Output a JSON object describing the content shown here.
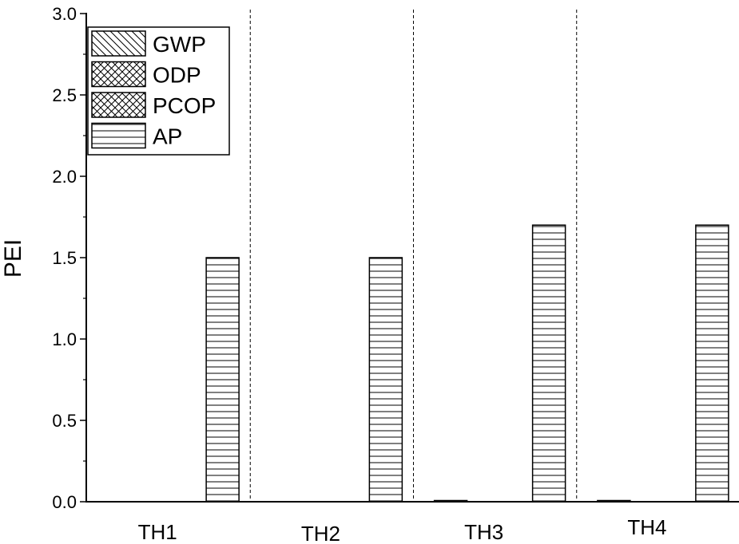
{
  "chart_data": {
    "type": "bar",
    "title": "",
    "xlabel": "",
    "ylabel": "PEI",
    "ylim": [
      0,
      3.0
    ],
    "yticks": [
      "0.0",
      "0.5",
      "1.0",
      "1.5",
      "2.0",
      "2.5",
      "3.0"
    ],
    "categories": [
      "TH1",
      "TH2",
      "TH3",
      "TH4"
    ],
    "series": [
      {
        "name": "GWP",
        "pattern": "diagonal-hatch",
        "values": [
          0,
          0,
          0.005,
          0.005
        ]
      },
      {
        "name": "ODP",
        "pattern": "cross-hatch",
        "values": [
          0,
          0,
          0,
          0
        ]
      },
      {
        "name": "PCOP",
        "pattern": "cross-hatch",
        "values": [
          0,
          0,
          0,
          0
        ]
      },
      {
        "name": "AP",
        "pattern": "horizontal-lines",
        "values": [
          1.5,
          1.5,
          1.7,
          1.7
        ]
      }
    ],
    "legend_position": "top-left",
    "category_separators": "dashed",
    "grid": false,
    "colors": {
      "stroke": "#000000",
      "fill": "#ffffff"
    }
  }
}
